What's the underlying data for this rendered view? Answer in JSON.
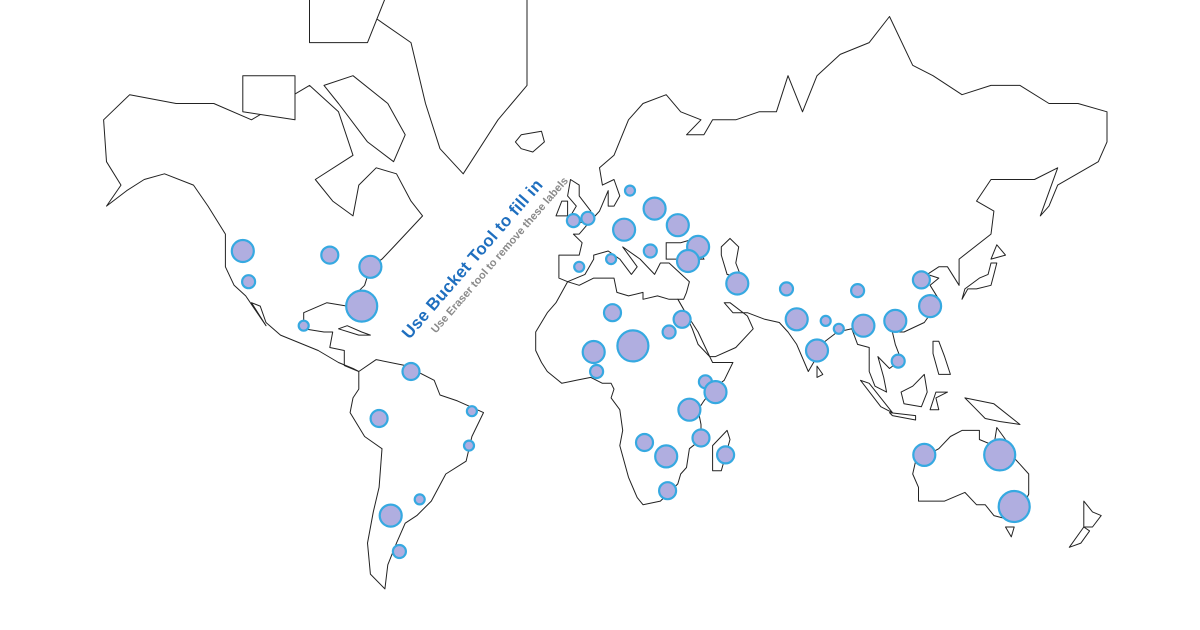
{
  "colors": {
    "bubble_fill": "#b0aee0",
    "bubble_stroke": "#36a9e1",
    "land_stroke": "#222222",
    "main_label": "#1f6fbf",
    "sub_label": "#8a8a8a"
  },
  "labels": {
    "main": "Use Bucket Tool to fill in",
    "sub": "Use Eraser tool to remove these labels"
  },
  "map": {
    "projection": "mercator",
    "bubbles": [
      {
        "lat": 44,
        "lon": -118,
        "size": 4
      },
      {
        "lat": 36,
        "lon": -116,
        "size": 2
      },
      {
        "lat": 43,
        "lon": -88,
        "size": 3
      },
      {
        "lat": 40,
        "lon": -74,
        "size": 4
      },
      {
        "lat": 29,
        "lon": -77,
        "size": 5
      },
      {
        "lat": 23,
        "lon": -97,
        "size": 1
      },
      {
        "lat": 8,
        "lon": -60,
        "size": 3
      },
      {
        "lat": -8,
        "lon": -71,
        "size": 3
      },
      {
        "lat": -5.5,
        "lon": -39,
        "size": 1
      },
      {
        "lat": -17,
        "lon": -40,
        "size": 1
      },
      {
        "lat": -38,
        "lon": -67,
        "size": 4
      },
      {
        "lat": -33.5,
        "lon": -57,
        "size": 1
      },
      {
        "lat": -47,
        "lon": -64,
        "size": 2
      },
      {
        "lat": 51,
        "lon": -4,
        "size": 2
      },
      {
        "lat": 51.5,
        "lon": 1,
        "size": 2
      },
      {
        "lat": 57,
        "lon": 15.5,
        "size": 1
      },
      {
        "lat": 49,
        "lon": 13.5,
        "size": 4
      },
      {
        "lat": 53.5,
        "lon": 24,
        "size": 4
      },
      {
        "lat": 50,
        "lon": 32,
        "size": 4
      },
      {
        "lat": 45,
        "lon": 39,
        "size": 4
      },
      {
        "lat": 44,
        "lon": 22.5,
        "size": 2
      },
      {
        "lat": 41.5,
        "lon": 35.5,
        "size": 4
      },
      {
        "lat": 42,
        "lon": 9,
        "size": 1
      },
      {
        "lat": 40,
        "lon": -2,
        "size": 1
      },
      {
        "lat": 27,
        "lon": 9.5,
        "size": 3
      },
      {
        "lat": 16.5,
        "lon": 16.5,
        "size": 5
      },
      {
        "lat": 14.5,
        "lon": 3,
        "size": 4
      },
      {
        "lat": 8,
        "lon": 4,
        "size": 2
      },
      {
        "lat": 25,
        "lon": 33.5,
        "size": 3
      },
      {
        "lat": 21,
        "lon": 29,
        "size": 2
      },
      {
        "lat": 35.5,
        "lon": 52.5,
        "size": 4
      },
      {
        "lat": 4.5,
        "lon": 41.5,
        "size": 2
      },
      {
        "lat": 1,
        "lon": 45,
        "size": 4
      },
      {
        "lat": -5,
        "lon": 36,
        "size": 4
      },
      {
        "lat": -14.5,
        "lon": 40,
        "size": 3
      },
      {
        "lat": -16,
        "lon": 20.5,
        "size": 3
      },
      {
        "lat": -20.5,
        "lon": 28,
        "size": 4
      },
      {
        "lat": -20,
        "lon": 48.5,
        "size": 3
      },
      {
        "lat": -31,
        "lon": 28.5,
        "size": 3
      },
      {
        "lat": 34,
        "lon": 69.5,
        "size": 2
      },
      {
        "lat": 25,
        "lon": 73,
        "size": 4
      },
      {
        "lat": 15,
        "lon": 80,
        "size": 4
      },
      {
        "lat": 24.5,
        "lon": 83,
        "size": 1
      },
      {
        "lat": 22,
        "lon": 87.5,
        "size": 1
      },
      {
        "lat": 33.5,
        "lon": 94,
        "size": 2
      },
      {
        "lat": 23,
        "lon": 96,
        "size": 4
      },
      {
        "lat": 24.5,
        "lon": 107,
        "size": 4
      },
      {
        "lat": 36.5,
        "lon": 116,
        "size": 3
      },
      {
        "lat": 29,
        "lon": 119,
        "size": 4
      },
      {
        "lat": 11.5,
        "lon": 108,
        "size": 2
      },
      {
        "lat": -20,
        "lon": 117,
        "size": 4
      },
      {
        "lat": -20,
        "lon": 143,
        "size": 5
      },
      {
        "lat": -35.5,
        "lon": 148,
        "size": 5
      }
    ]
  }
}
